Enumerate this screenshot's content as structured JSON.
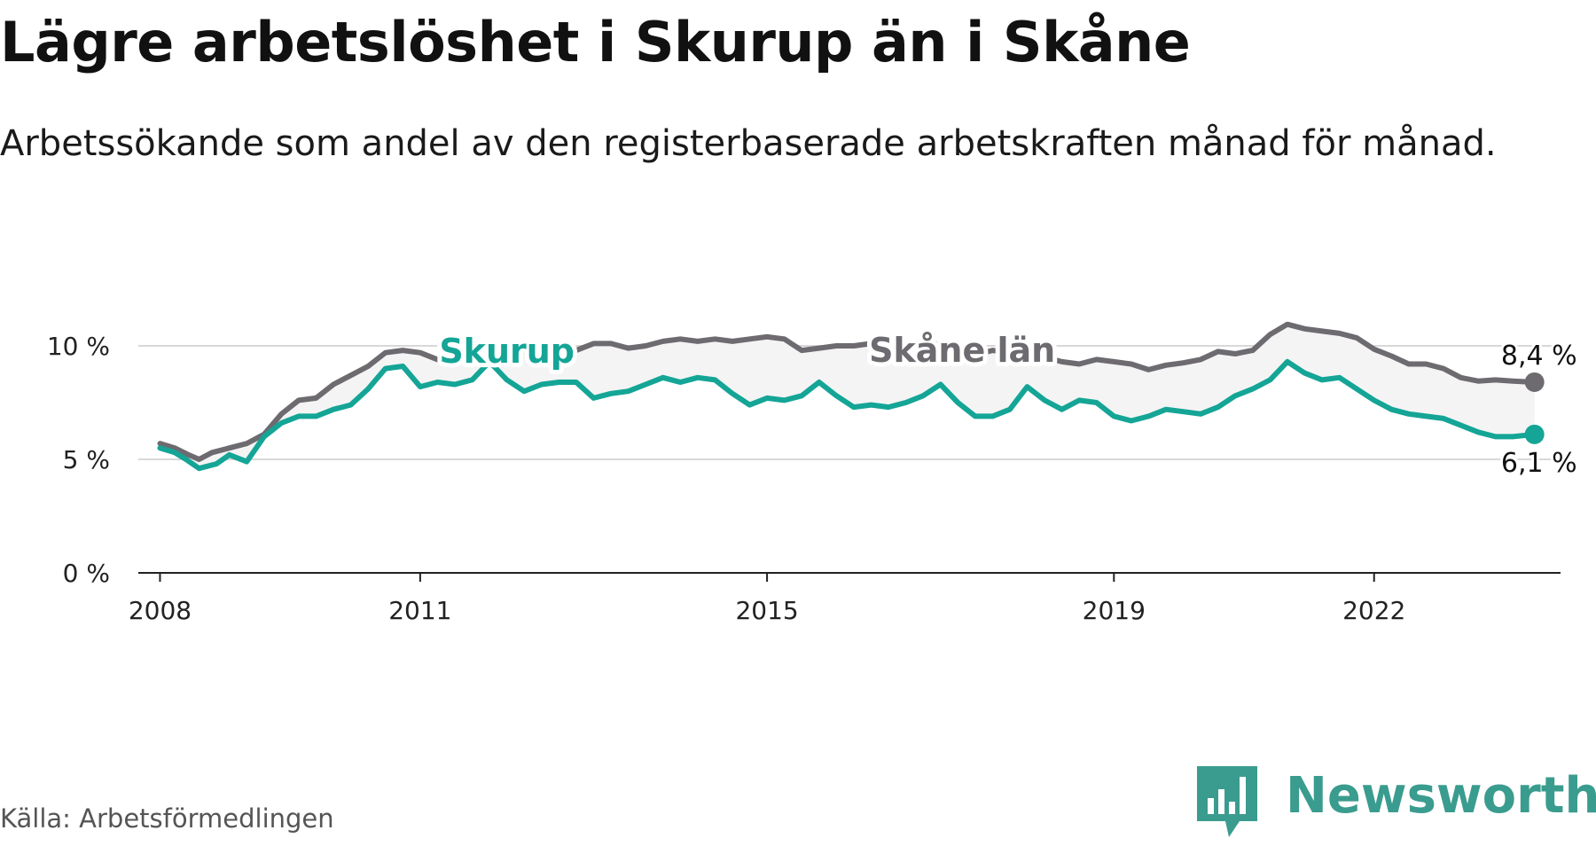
{
  "title": "Lägre arbetslöshet i Skurup än i Skåne",
  "subtitle": "Arbetssökande som andel av den registerbaserade arbetskraften månad för månad.",
  "source": "Källa: Arbetsförmedlingen",
  "brand": {
    "name": "Newsworthy",
    "color": "#3a9c8e",
    "icon": "bar-chart-speech-bubble-icon"
  },
  "colors": {
    "skane": "#6d6a70",
    "skurup": "#14a596",
    "band": "#ebebeb",
    "grid": "#d8d8d8",
    "axis": "#222222"
  },
  "chart_data": {
    "type": "line",
    "title": "Lägre arbetslöshet i Skurup än i Skåne",
    "xlabel": "",
    "ylabel": "",
    "xlim": [
      2007.75,
      2024.15
    ],
    "ylim": [
      0,
      10
    ],
    "y_ticks": [
      0,
      5,
      10
    ],
    "y_tick_labels": [
      "0 %",
      "5 %",
      "10 %"
    ],
    "x_ticks": [
      2008,
      2011,
      2015,
      2019,
      2022
    ],
    "x_tick_labels": [
      "2008",
      "2011",
      "2015",
      "2019",
      "2022"
    ],
    "grid": true,
    "shaded_band_between_series": true,
    "series": [
      {
        "name": "Skåne län",
        "label_position": [
          2017.25,
          9.3
        ],
        "end_label": "8,4 %",
        "end_value": 8.4,
        "points": [
          [
            2008.0,
            5.7
          ],
          [
            2008.17,
            5.5
          ],
          [
            2008.33,
            5.2
          ],
          [
            2008.45,
            5.0
          ],
          [
            2008.6,
            5.3
          ],
          [
            2008.8,
            5.5
          ],
          [
            2009.0,
            5.7
          ],
          [
            2009.2,
            6.1
          ],
          [
            2009.4,
            7.0
          ],
          [
            2009.6,
            7.6
          ],
          [
            2009.8,
            7.7
          ],
          [
            2010.0,
            8.3
          ],
          [
            2010.2,
            8.7
          ],
          [
            2010.4,
            9.1
          ],
          [
            2010.6,
            9.7
          ],
          [
            2010.8,
            9.8
          ],
          [
            2011.0,
            9.7
          ],
          [
            2011.2,
            9.4
          ],
          [
            2011.4,
            9.8
          ],
          [
            2011.6,
            9.7
          ],
          [
            2011.8,
            10.0
          ],
          [
            2012.0,
            10.1
          ],
          [
            2012.2,
            9.8
          ],
          [
            2012.4,
            9.5
          ],
          [
            2012.6,
            9.8
          ],
          [
            2012.8,
            9.8
          ],
          [
            2013.0,
            10.1
          ],
          [
            2013.2,
            10.1
          ],
          [
            2013.4,
            9.9
          ],
          [
            2013.6,
            10.0
          ],
          [
            2013.8,
            10.2
          ],
          [
            2014.0,
            10.3
          ],
          [
            2014.2,
            10.2
          ],
          [
            2014.4,
            10.3
          ],
          [
            2014.6,
            10.2
          ],
          [
            2014.8,
            10.3
          ],
          [
            2015.0,
            10.4
          ],
          [
            2015.2,
            10.3
          ],
          [
            2015.4,
            9.8
          ],
          [
            2015.6,
            9.9
          ],
          [
            2015.8,
            10.0
          ],
          [
            2016.0,
            10.0
          ],
          [
            2016.2,
            10.1
          ],
          [
            2016.4,
            9.8
          ],
          [
            2016.6,
            9.9
          ],
          [
            2016.8,
            10.0
          ],
          [
            2017.0,
            10.1
          ],
          [
            2017.2,
            9.7
          ],
          [
            2017.4,
            9.6
          ],
          [
            2017.6,
            9.8
          ],
          [
            2017.8,
            9.7
          ],
          [
            2018.0,
            9.6
          ],
          [
            2018.2,
            9.5
          ],
          [
            2018.4,
            9.3
          ],
          [
            2018.6,
            9.2
          ],
          [
            2018.8,
            9.4
          ],
          [
            2019.0,
            9.3
          ],
          [
            2019.2,
            9.2
          ],
          [
            2019.4,
            8.95
          ],
          [
            2019.6,
            9.15
          ],
          [
            2019.8,
            9.25
          ],
          [
            2020.0,
            9.4
          ],
          [
            2020.2,
            9.75
          ],
          [
            2020.4,
            9.65
          ],
          [
            2020.6,
            9.8
          ],
          [
            2020.8,
            10.5
          ],
          [
            2021.0,
            10.95
          ],
          [
            2021.2,
            10.75
          ],
          [
            2021.4,
            10.65
          ],
          [
            2021.6,
            10.55
          ],
          [
            2021.8,
            10.35
          ],
          [
            2022.0,
            9.85
          ],
          [
            2022.2,
            9.55
          ],
          [
            2022.4,
            9.2
          ],
          [
            2022.6,
            9.2
          ],
          [
            2022.8,
            9.0
          ],
          [
            2023.0,
            8.6
          ],
          [
            2023.2,
            8.45
          ],
          [
            2023.4,
            8.5
          ],
          [
            2023.6,
            8.45
          ],
          [
            2023.85,
            8.4
          ]
        ]
      },
      {
        "name": "Skurup",
        "label_position": [
          2012.0,
          9.25
        ],
        "end_label": "6,1 %",
        "end_value": 6.1,
        "points": [
          [
            2008.0,
            5.5
          ],
          [
            2008.17,
            5.3
          ],
          [
            2008.3,
            5.0
          ],
          [
            2008.45,
            4.6
          ],
          [
            2008.65,
            4.8
          ],
          [
            2008.8,
            5.2
          ],
          [
            2009.0,
            4.9
          ],
          [
            2009.2,
            6.0
          ],
          [
            2009.4,
            6.6
          ],
          [
            2009.6,
            6.9
          ],
          [
            2009.8,
            6.9
          ],
          [
            2010.0,
            7.2
          ],
          [
            2010.2,
            7.4
          ],
          [
            2010.4,
            8.1
          ],
          [
            2010.6,
            9.0
          ],
          [
            2010.8,
            9.1
          ],
          [
            2011.0,
            8.2
          ],
          [
            2011.2,
            8.4
          ],
          [
            2011.4,
            8.3
          ],
          [
            2011.6,
            8.5
          ],
          [
            2011.8,
            9.3
          ],
          [
            2012.0,
            8.5
          ],
          [
            2012.2,
            8.0
          ],
          [
            2012.4,
            8.3
          ],
          [
            2012.6,
            8.4
          ],
          [
            2012.8,
            8.4
          ],
          [
            2013.0,
            7.7
          ],
          [
            2013.2,
            7.9
          ],
          [
            2013.4,
            8.0
          ],
          [
            2013.6,
            8.3
          ],
          [
            2013.8,
            8.6
          ],
          [
            2014.0,
            8.4
          ],
          [
            2014.2,
            8.6
          ],
          [
            2014.4,
            8.5
          ],
          [
            2014.6,
            7.9
          ],
          [
            2014.8,
            7.4
          ],
          [
            2015.0,
            7.7
          ],
          [
            2015.2,
            7.6
          ],
          [
            2015.4,
            7.8
          ],
          [
            2015.6,
            8.4
          ],
          [
            2015.8,
            7.8
          ],
          [
            2016.0,
            7.3
          ],
          [
            2016.2,
            7.4
          ],
          [
            2016.4,
            7.3
          ],
          [
            2016.6,
            7.5
          ],
          [
            2016.8,
            7.8
          ],
          [
            2017.0,
            8.3
          ],
          [
            2017.2,
            7.5
          ],
          [
            2017.4,
            6.9
          ],
          [
            2017.6,
            6.9
          ],
          [
            2017.8,
            7.2
          ],
          [
            2018.0,
            8.2
          ],
          [
            2018.2,
            7.6
          ],
          [
            2018.4,
            7.2
          ],
          [
            2018.6,
            7.6
          ],
          [
            2018.8,
            7.5
          ],
          [
            2019.0,
            6.9
          ],
          [
            2019.2,
            6.7
          ],
          [
            2019.4,
            6.9
          ],
          [
            2019.6,
            7.2
          ],
          [
            2019.8,
            7.1
          ],
          [
            2020.0,
            7.0
          ],
          [
            2020.2,
            7.3
          ],
          [
            2020.4,
            7.8
          ],
          [
            2020.6,
            8.1
          ],
          [
            2020.8,
            8.5
          ],
          [
            2021.0,
            9.3
          ],
          [
            2021.2,
            8.8
          ],
          [
            2021.4,
            8.5
          ],
          [
            2021.6,
            8.6
          ],
          [
            2021.8,
            8.1
          ],
          [
            2022.0,
            7.6
          ],
          [
            2022.2,
            7.2
          ],
          [
            2022.4,
            7.0
          ],
          [
            2022.6,
            6.9
          ],
          [
            2022.8,
            6.8
          ],
          [
            2023.0,
            6.5
          ],
          [
            2023.2,
            6.2
          ],
          [
            2023.4,
            6.0
          ],
          [
            2023.6,
            6.0
          ],
          [
            2023.85,
            6.1
          ]
        ]
      }
    ]
  }
}
